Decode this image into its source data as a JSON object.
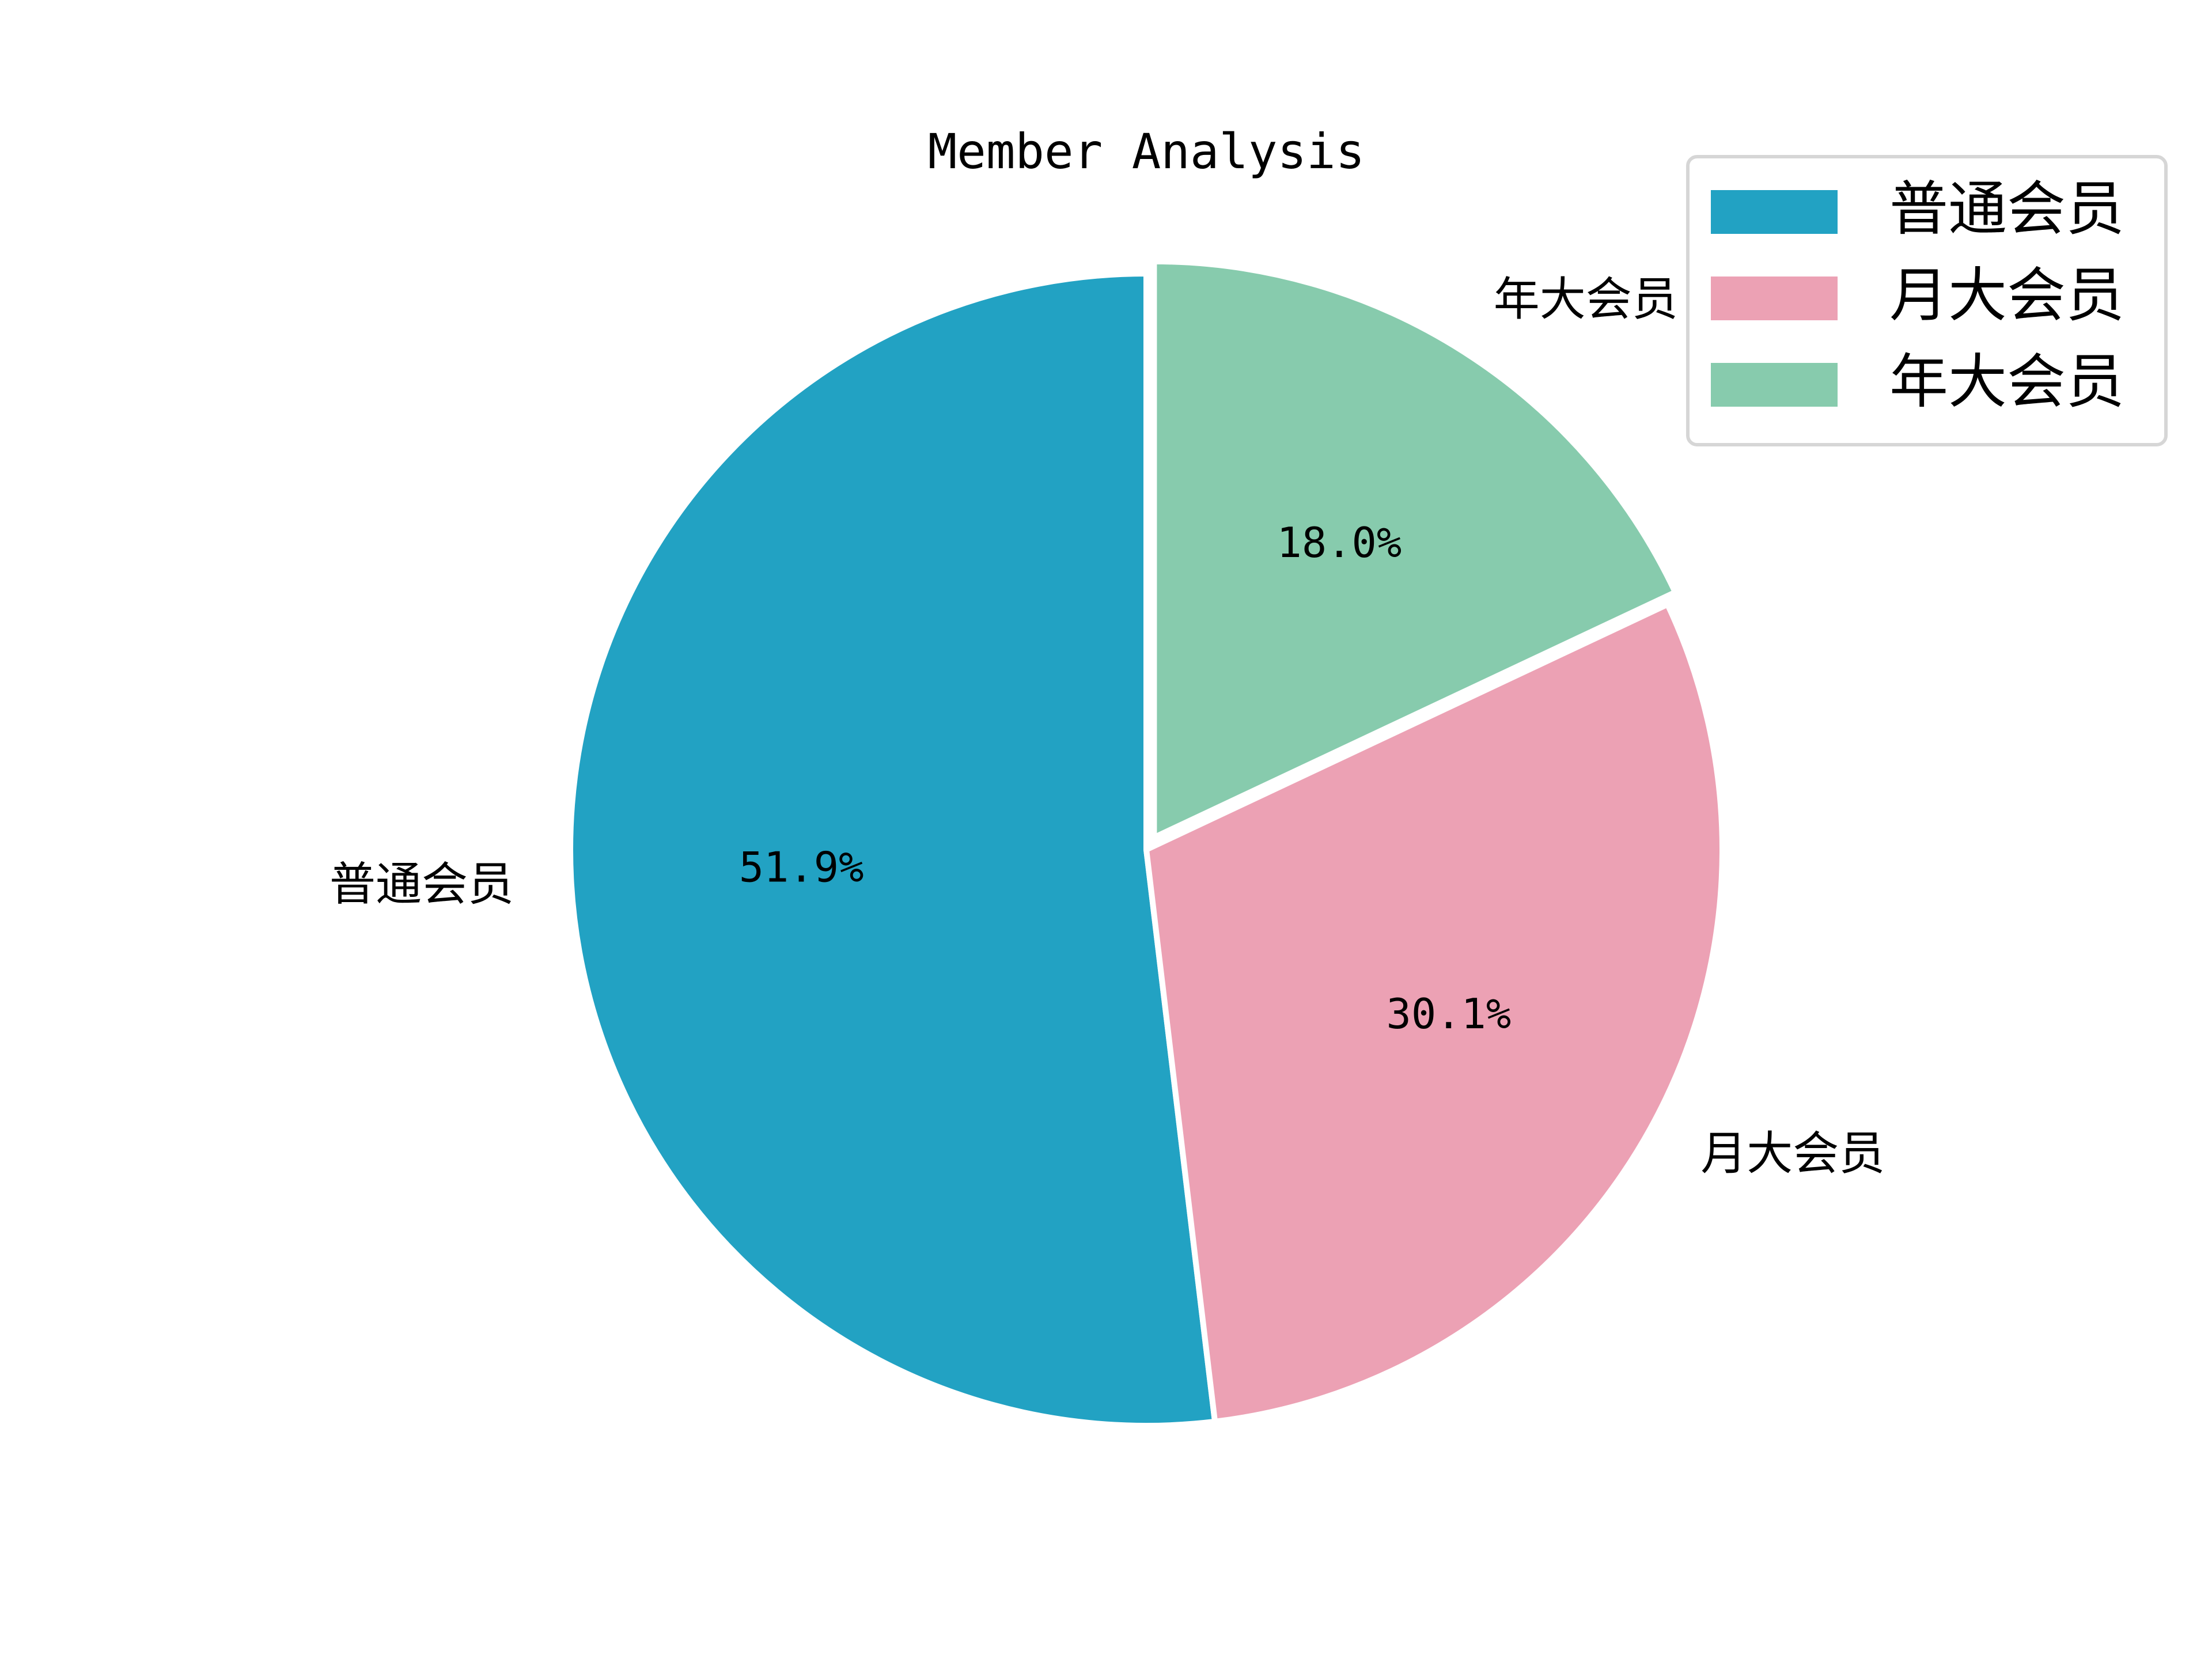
{
  "chart_data": {
    "type": "pie",
    "title": "Member Analysis",
    "slices": [
      {
        "label": "普通会员",
        "value": 51.9,
        "pct_label": "51.9%",
        "color": "#22a2c3",
        "explode": 0
      },
      {
        "label": "月大会员",
        "value": 30.1,
        "pct_label": "30.1%",
        "color": "#eca1b4",
        "explode": 0
      },
      {
        "label": "年大会员",
        "value": 18.0,
        "pct_label": "18.0%",
        "color": "#87cbad",
        "explode": 0.025
      }
    ],
    "start_angle_deg": 90,
    "direction": "counterclockwise",
    "edge_color": "#ffffff",
    "legend": {
      "position": "top-right",
      "items": [
        "普通会员",
        "月大会员",
        "年大会员"
      ]
    }
  }
}
